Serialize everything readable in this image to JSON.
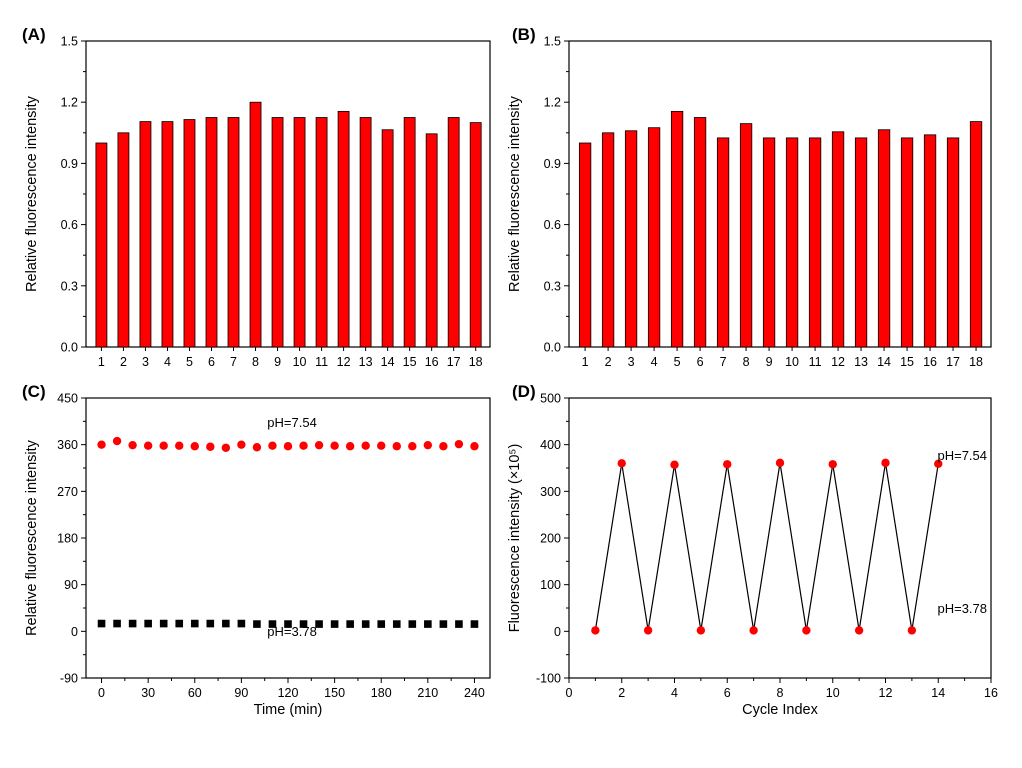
{
  "chart_data": [
    {
      "panel": "(A)",
      "type": "bar",
      "categories": [
        "1",
        "2",
        "3",
        "4",
        "5",
        "6",
        "7",
        "8",
        "9",
        "10",
        "11",
        "12",
        "13",
        "14",
        "15",
        "16",
        "17",
        "18"
      ],
      "values": [
        1.0,
        1.05,
        1.105,
        1.105,
        1.115,
        1.125,
        1.125,
        1.2,
        1.125,
        1.125,
        1.125,
        1.155,
        1.125,
        1.065,
        1.125,
        1.045,
        1.125,
        1.1
      ],
      "xlabel": "",
      "ylabel": "Relative fluorescence intensity",
      "ylim": [
        0,
        1.5
      ],
      "yticks": [
        "0.0",
        "0.3",
        "0.6",
        "0.9",
        "1.2",
        "1.5"
      ],
      "color": "#ff0000"
    },
    {
      "panel": "(B)",
      "type": "bar",
      "categories": [
        "1",
        "2",
        "3",
        "4",
        "5",
        "6",
        "7",
        "8",
        "9",
        "10",
        "11",
        "12",
        "13",
        "14",
        "15",
        "16",
        "17",
        "18"
      ],
      "values": [
        1.0,
        1.05,
        1.06,
        1.075,
        1.155,
        1.125,
        1.025,
        1.095,
        1.025,
        1.025,
        1.025,
        1.055,
        1.025,
        1.065,
        1.025,
        1.04,
        1.025,
        1.105
      ],
      "xlabel": "",
      "ylabel": "Relative fluorescence intensity",
      "ylim": [
        0,
        1.5
      ],
      "yticks": [
        "0.0",
        "0.3",
        "0.6",
        "0.9",
        "1.2",
        "1.5"
      ],
      "color": "#ff0000"
    },
    {
      "panel": "(C)",
      "type": "scatter",
      "xlabel": "Time (min)",
      "ylabel": "Relative fluorescence intensity",
      "xlim": [
        -10,
        250
      ],
      "ylim": [
        -90,
        450
      ],
      "xticks": [
        "0",
        "30",
        "60",
        "90",
        "120",
        "150",
        "180",
        "210",
        "240"
      ],
      "yticks": [
        "-90",
        "0",
        "90",
        "180",
        "270",
        "360",
        "450"
      ],
      "series": [
        {
          "marker": "circle",
          "color": "#ff0000",
          "x": [
            0,
            10,
            20,
            30,
            40,
            50,
            60,
            70,
            80,
            90,
            100,
            110,
            120,
            130,
            140,
            150,
            160,
            170,
            180,
            190,
            200,
            210,
            220,
            230,
            240
          ],
          "y": [
            360,
            367,
            359,
            358,
            358,
            358,
            357,
            356,
            354,
            360,
            355,
            358,
            357,
            358,
            359,
            358,
            357,
            358,
            358,
            357,
            357,
            359,
            357,
            361,
            357
          ]
        },
        {
          "marker": "square",
          "color": "#000000",
          "x": [
            0,
            10,
            20,
            30,
            40,
            50,
            60,
            70,
            80,
            90,
            100,
            110,
            120,
            130,
            140,
            150,
            160,
            170,
            180,
            190,
            200,
            210,
            220,
            230,
            240
          ],
          "y": [
            15,
            15,
            15,
            15,
            15,
            15,
            15,
            15,
            15,
            15,
            14,
            14,
            14,
            14,
            14,
            14,
            14,
            14,
            14,
            14,
            14,
            14,
            14,
            14,
            14
          ]
        }
      ],
      "annotations": [
        "pH=7.54",
        "pH=3.78"
      ]
    },
    {
      "panel": "(D)",
      "type": "line",
      "xlabel": "Cycle Index",
      "ylabel": "Fluorescence intensity (×10⁵)",
      "xlim": [
        0,
        16
      ],
      "ylim": [
        -100,
        500
      ],
      "xticks": [
        "0",
        "2",
        "4",
        "6",
        "8",
        "10",
        "12",
        "14",
        "16"
      ],
      "yticks": [
        "-100",
        "0",
        "100",
        "200",
        "300",
        "400",
        "500"
      ],
      "series": [
        {
          "marker": "circle",
          "color": "#ff0000",
          "line_color": "#000000",
          "x": [
            1,
            2,
            3,
            4,
            5,
            6,
            7,
            8,
            9,
            10,
            11,
            12,
            13,
            14
          ],
          "y": [
            2,
            360,
            2,
            357,
            2,
            358,
            2,
            361,
            2,
            358,
            2,
            361,
            2,
            359
          ]
        }
      ],
      "annotations": [
        "pH=7.54",
        "pH=3.78"
      ]
    }
  ]
}
